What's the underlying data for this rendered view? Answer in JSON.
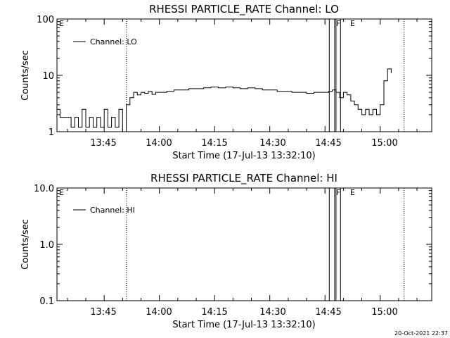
{
  "timestamp": "20-Oct-2021 22:37",
  "chart_data": [
    {
      "type": "line",
      "title": "RHESSI PARTICLE_RATE Channel: LO",
      "xlabel": "Start Time (17-Jul-13 13:32:10)",
      "ylabel": "Counts/sec",
      "yscale": "log",
      "ylim": [
        1,
        100
      ],
      "xlim": [
        "13:32:10",
        "15:14:00"
      ],
      "xticks": [
        "13:45",
        "14:00",
        "14:15",
        "14:30",
        "14:45",
        "15:00"
      ],
      "yticks": [
        "1",
        "10",
        "100"
      ],
      "legend": "top-left",
      "series": [
        {
          "name": "Channel: LO",
          "x": [
            "13:32:10",
            "13:33:00",
            "13:34:00",
            "13:35:00",
            "13:36:00",
            "13:37:00",
            "13:38:00",
            "13:39:00",
            "13:40:00",
            "13:41:00",
            "13:42:00",
            "13:43:00",
            "13:44:00",
            "13:45:00",
            "13:46:00",
            "13:47:00",
            "13:48:00",
            "13:49:00",
            "13:50:00",
            "13:51:00",
            "13:52:00",
            "13:53:00",
            "13:54:00",
            "13:55:00",
            "13:56:00",
            "13:57:00",
            "13:58:00",
            "13:59:00",
            "14:00:00",
            "14:02:00",
            "14:04:00",
            "14:06:00",
            "14:08:00",
            "14:10:00",
            "14:12:00",
            "14:14:00",
            "14:16:00",
            "14:18:00",
            "14:20:00",
            "14:22:00",
            "14:24:00",
            "14:26:00",
            "14:28:00",
            "14:30:00",
            "14:32:00",
            "14:34:00",
            "14:36:00",
            "14:38:00",
            "14:40:00",
            "14:42:00",
            "14:44:00",
            "14:46:00",
            "14:47:00",
            "14:48:00",
            "14:49:00",
            "14:50:00",
            "14:51:00",
            "14:52:00",
            "14:53:00",
            "14:54:00",
            "14:55:00",
            "14:56:00",
            "14:57:00",
            "14:58:00",
            "14:59:00",
            "15:00:00",
            "15:01:00",
            "15:02:00",
            "15:03:00"
          ],
          "values": [
            2.5,
            1.8,
            1.8,
            1.8,
            1.2,
            1.8,
            1.2,
            2.5,
            1.2,
            1.8,
            1.2,
            1.8,
            1.2,
            2.5,
            1.2,
            1.8,
            1.2,
            2.5,
            1.0,
            3.0,
            4.0,
            5.0,
            4.5,
            5.0,
            4.8,
            5.2,
            4.6,
            5.0,
            5.0,
            5.2,
            5.5,
            5.5,
            5.8,
            5.8,
            6.0,
            6.2,
            6.0,
            6.2,
            6.0,
            5.8,
            6.0,
            5.8,
            5.5,
            5.5,
            5.2,
            5.2,
            5.0,
            5.0,
            4.8,
            5.0,
            5.0,
            5.2,
            5.5,
            5.0,
            4.0,
            5.0,
            4.5,
            3.5,
            3.0,
            2.5,
            2.0,
            2.5,
            2.0,
            2.5,
            2.0,
            3.0,
            8.0,
            13.0,
            11.0
          ]
        }
      ],
      "annotations": [
        {
          "label": "E",
          "time": "13:32:10"
        },
        {
          "label": "F",
          "time": "14:46:10"
        },
        {
          "label": "E",
          "time": "14:48:00"
        }
      ],
      "dotted_lines": [
        "13:51:00",
        "15:06:30"
      ]
    },
    {
      "type": "line",
      "title": "RHESSI PARTICLE_RATE Channel: HI",
      "xlabel": "Start Time (17-Jul-13 13:32:10)",
      "ylabel": "Counts/sec",
      "yscale": "log",
      "ylim": [
        0.1,
        10.0
      ],
      "xlim": [
        "13:32:10",
        "15:14:00"
      ],
      "xticks": [
        "13:45",
        "14:00",
        "14:15",
        "14:30",
        "14:45",
        "15:00"
      ],
      "yticks": [
        "0.1",
        "1.0",
        "10.0"
      ],
      "legend": "top-left",
      "series": [
        {
          "name": "Channel: HI",
          "x": [],
          "values": []
        }
      ],
      "annotations": [
        {
          "label": "E",
          "time": "13:32:10"
        },
        {
          "label": "F",
          "time": "14:46:10"
        },
        {
          "label": "E",
          "time": "14:48:00"
        }
      ],
      "dotted_lines": [
        "13:51:00",
        "15:06:30"
      ]
    }
  ]
}
